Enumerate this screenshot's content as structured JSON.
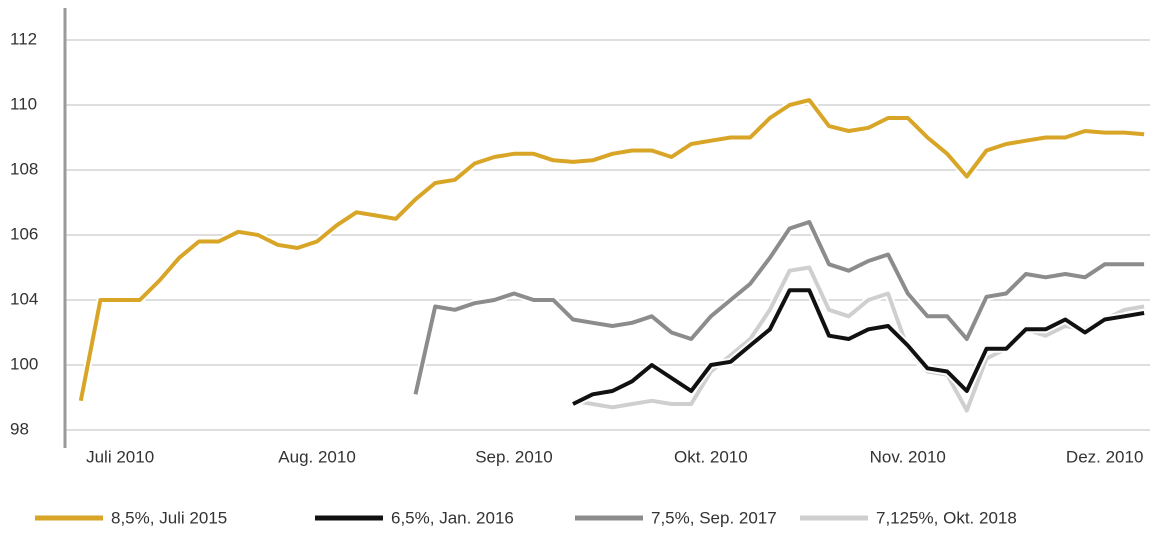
{
  "chart_data": {
    "type": "line",
    "x": [
      -0.2,
      -0.1,
      0.0,
      0.1,
      0.2,
      0.3,
      0.4,
      0.5,
      0.6,
      0.7,
      0.8,
      0.9,
      1.0,
      1.1,
      1.2,
      1.3,
      1.4,
      1.5,
      1.6,
      1.7,
      1.8,
      1.9,
      2.0,
      2.1,
      2.2,
      2.3,
      2.4,
      2.5,
      2.6,
      2.7,
      2.8,
      2.9,
      3.0,
      3.1,
      3.2,
      3.3,
      3.4,
      3.5,
      3.6,
      3.7,
      3.8,
      3.9,
      4.0,
      4.1,
      4.2,
      4.3,
      4.4,
      4.5,
      4.6,
      4.7,
      4.8,
      4.9,
      5.0,
      5.1,
      5.2
    ],
    "xlim": [
      -0.28,
      5.22
    ],
    "xticks": [
      {
        "value": 0,
        "label": "Juli 2010"
      },
      {
        "value": 1,
        "label": "Aug. 2010"
      },
      {
        "value": 2,
        "label": "Sep. 2010"
      },
      {
        "value": 3,
        "label": "Okt. 2010"
      },
      {
        "value": 4,
        "label": "Nov. 2010"
      },
      {
        "value": 5,
        "label": "Dez. 2010"
      }
    ],
    "ylim": [
      99.4,
      113
    ],
    "yticks": [
      {
        "value": 100,
        "label": "98"
      },
      {
        "value": 102,
        "label": "100"
      },
      104,
      106,
      108,
      110,
      112
    ],
    "grid": true,
    "legend": "bottom",
    "series": [
      {
        "name": "8,5%, Juli 2015",
        "color": "#d8a526",
        "values": [
          100.9,
          104.0,
          104.0,
          104.0,
          104.6,
          105.3,
          105.8,
          105.8,
          106.1,
          106.0,
          105.7,
          105.6,
          105.8,
          106.3,
          106.7,
          106.6,
          106.5,
          107.1,
          107.6,
          107.7,
          108.2,
          108.4,
          108.5,
          108.5,
          108.3,
          108.25,
          108.3,
          108.5,
          108.6,
          108.6,
          108.4,
          108.8,
          108.9,
          109.0,
          109.0,
          109.6,
          110.0,
          110.15,
          109.35,
          109.2,
          109.3,
          109.6,
          109.6,
          109.0,
          108.5,
          107.8,
          108.6,
          108.8,
          108.9,
          109.0,
          109.0,
          109.2,
          109.15,
          109.15,
          109.1
        ]
      },
      {
        "name": "6,5%, Jan. 2016",
        "color": "#111111",
        "values": [
          null,
          null,
          null,
          null,
          null,
          null,
          null,
          null,
          null,
          null,
          null,
          null,
          null,
          null,
          null,
          null,
          null,
          null,
          null,
          null,
          null,
          null,
          null,
          null,
          null,
          100.8,
          101.1,
          101.2,
          101.5,
          102.0,
          101.6,
          101.2,
          102.0,
          102.1,
          102.6,
          103.1,
          104.3,
          104.3,
          102.9,
          102.8,
          103.1,
          103.2,
          102.6,
          101.9,
          101.8,
          101.2,
          102.5,
          102.5,
          103.1,
          103.1,
          103.4,
          103.0,
          103.4,
          103.5,
          103.6
        ]
      },
      {
        "name": "7,5%, Sep. 2017",
        "color": "#8c8c8c",
        "values": [
          null,
          null,
          null,
          null,
          null,
          null,
          null,
          null,
          null,
          null,
          null,
          null,
          null,
          null,
          null,
          null,
          null,
          101.1,
          103.8,
          103.7,
          103.9,
          104.0,
          104.2,
          104.0,
          104.0,
          103.4,
          103.3,
          103.2,
          103.3,
          103.5,
          103.0,
          102.8,
          103.5,
          104.0,
          104.5,
          105.3,
          106.2,
          106.4,
          105.1,
          104.9,
          105.2,
          105.4,
          104.2,
          103.5,
          103.5,
          102.8,
          104.1,
          104.2,
          104.8,
          104.7,
          104.8,
          104.7,
          105.1,
          105.1,
          105.1
        ]
      },
      {
        "name": "7,125%, Okt. 2018",
        "color": "#cfcfcf",
        "values": [
          null,
          null,
          null,
          null,
          null,
          null,
          null,
          null,
          null,
          null,
          null,
          null,
          null,
          null,
          null,
          null,
          null,
          null,
          null,
          null,
          null,
          null,
          null,
          null,
          null,
          100.9,
          100.8,
          100.7,
          100.8,
          100.9,
          100.8,
          100.8,
          101.8,
          102.3,
          102.8,
          103.7,
          104.9,
          105.0,
          103.7,
          103.5,
          104.0,
          104.2,
          102.5,
          101.8,
          101.7,
          100.6,
          102.2,
          102.5,
          103.1,
          102.9,
          103.2,
          103.1,
          103.4,
          103.7,
          103.8
        ]
      }
    ]
  }
}
